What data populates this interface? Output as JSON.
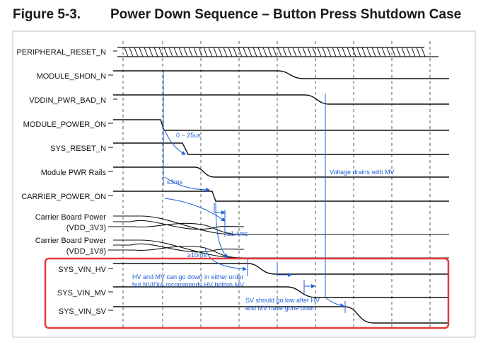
{
  "figure": {
    "number": "Figure 5-3.",
    "title": "Power Down Sequence – Button Press Shutdown Case"
  },
  "signals": [
    {
      "id": "peripheral-reset-n",
      "label": "PERIPHERAL_RESET_N",
      "type": "hatched"
    },
    {
      "id": "module-shdn-n",
      "label": "MODULE_SHDN_N",
      "type": "fall"
    },
    {
      "id": "vddin-pwr-bad-n",
      "label": "VDDIN_PWR_BAD_N",
      "type": "fall"
    },
    {
      "id": "module-power-on",
      "label": "MODULE_POWER_ON",
      "type": "fall"
    },
    {
      "id": "sys-reset-n",
      "label": "SYS_RESET_N",
      "type": "fall"
    },
    {
      "id": "module-pwr-rails",
      "label": "Module PWR Rails",
      "type": "fall"
    },
    {
      "id": "carrier-power-on",
      "label": "CARRIER_POWER_ON",
      "type": "fall"
    },
    {
      "id": "carrier-board-power-3v3",
      "label": "Carrier Board Power",
      "label2": "(VDD_3V3)",
      "type": "multi"
    },
    {
      "id": "carrier-board-power-1v8",
      "label": "Carrier Board Power",
      "label2": "(VDD_1V8)",
      "type": "multi"
    },
    {
      "id": "sys-vin-hv",
      "label": "SYS_VIN_HV",
      "type": "fall"
    },
    {
      "id": "sys-vin-mv",
      "label": "SYS_VIN_MV",
      "type": "fall"
    },
    {
      "id": "sys-vin-sv",
      "label": "SYS_VIN_SV",
      "type": "fall"
    }
  ],
  "annotations": {
    "t_0_25us": "0 ~ 25us",
    "t_le_3ms": "≤3ms",
    "t_le_1_4ms": "≤1.4ms",
    "t_ge_10ms": "≥10ms",
    "voltage_drains": "Voltage drains with MV",
    "hv_mv_line1": "HV and MV can go down in either order",
    "hv_mv_line2": "but NVIDIA recommends HV before MV",
    "sv_line1": "SV should go low after HV",
    "sv_line2": "and MV have gone down"
  },
  "colors": {
    "signal": "#111111",
    "annotation": "#1f5fd6",
    "highlight_box": "#e23b3b",
    "grid": "#333333"
  }
}
